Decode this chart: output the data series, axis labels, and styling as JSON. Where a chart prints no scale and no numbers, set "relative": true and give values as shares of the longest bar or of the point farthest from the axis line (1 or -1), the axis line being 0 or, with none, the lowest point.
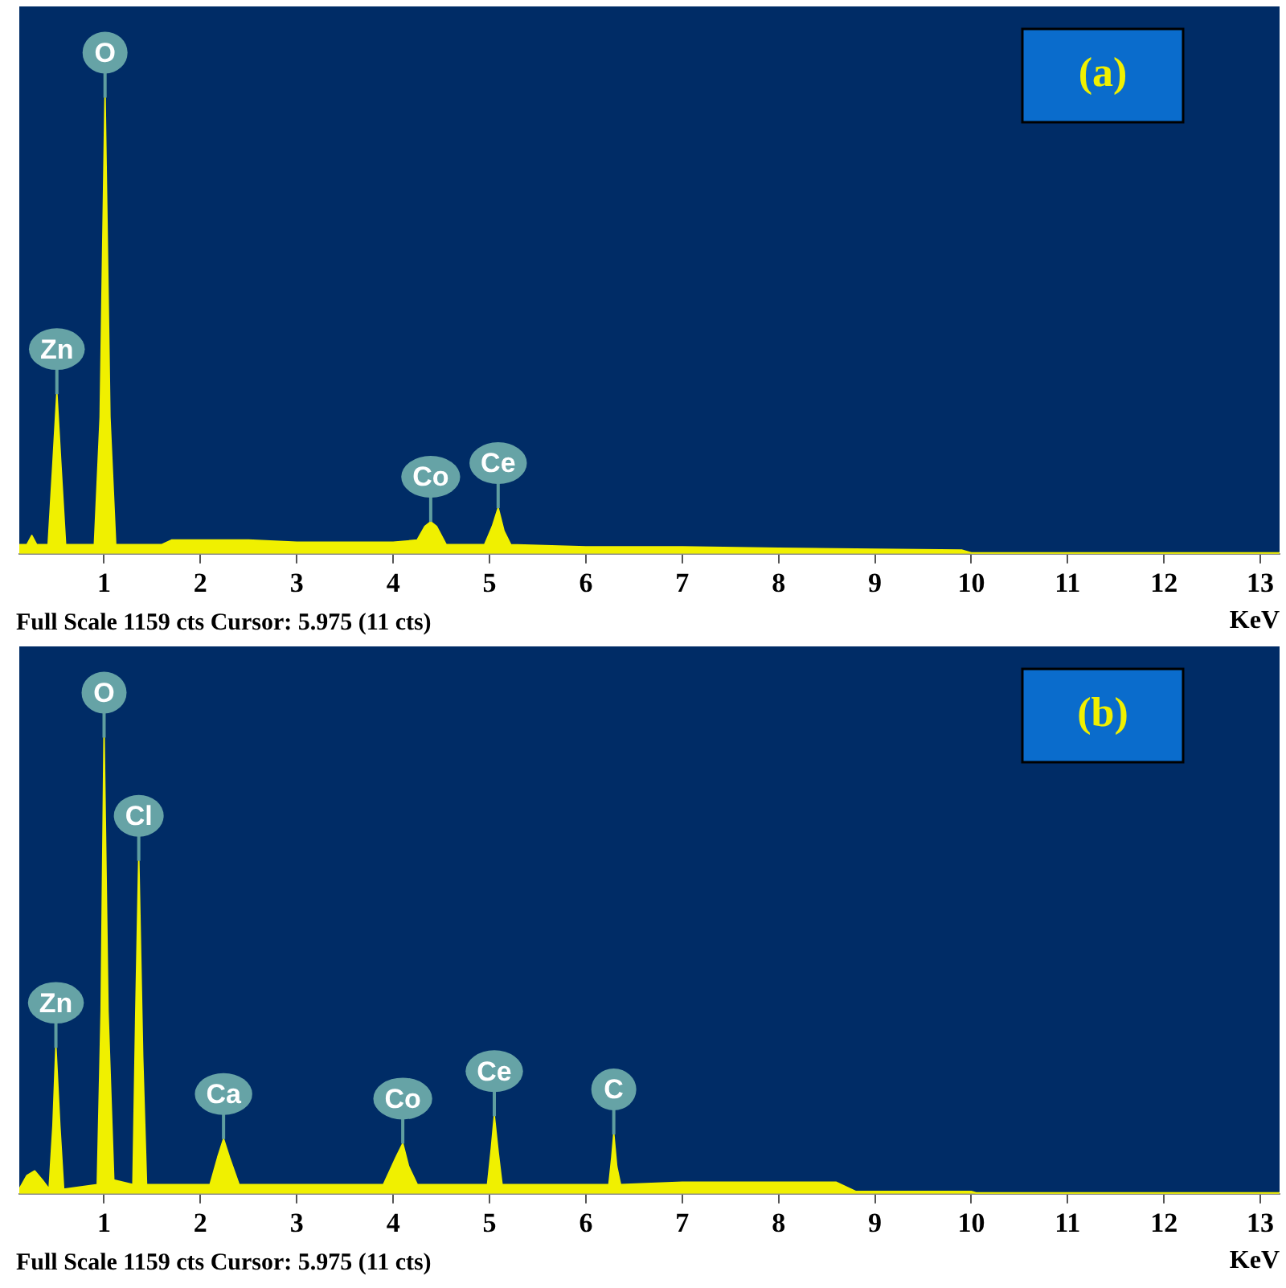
{
  "chart_data": [
    {
      "type": "area",
      "title": "(a)",
      "xlabel": "KeV",
      "relative": true,
      "xlim": [
        0.12,
        13.2
      ],
      "xticks": [
        1,
        2,
        3,
        4,
        5,
        6,
        7,
        8,
        9,
        10,
        11,
        12,
        13
      ],
      "series": [
        {
          "color": "#f0f000",
          "x": [
            0.12,
            0.2,
            0.25,
            0.3,
            0.42,
            0.47,
            0.51,
            0.55,
            0.6,
            0.9,
            0.96,
            1.01,
            1.06,
            1.12,
            1.6,
            1.7,
            2.5,
            3.0,
            4.0,
            4.25,
            4.33,
            4.39,
            4.45,
            4.55,
            4.95,
            5.03,
            5.09,
            5.15,
            5.22,
            6,
            7,
            8,
            9,
            9.9,
            10,
            13.2
          ],
          "values": [
            0.02,
            0.02,
            0.04,
            0.02,
            0.02,
            0.2,
            0.35,
            0.2,
            0.02,
            0.02,
            0.3,
            1,
            0.3,
            0.02,
            0.02,
            0.03,
            0.03,
            0.025,
            0.025,
            0.03,
            0.06,
            0.07,
            0.06,
            0.02,
            0.02,
            0.06,
            0.1,
            0.05,
            0.02,
            0.015,
            0.015,
            0.012,
            0.01,
            0.008,
            0.002,
            0.002
          ]
        }
      ],
      "annotations": [
        {
          "text": "Zn",
          "x": 0.51,
          "y": 0.35
        },
        {
          "text": "O",
          "x": 1.01,
          "y": 1
        },
        {
          "text": "Co",
          "x": 4.39,
          "y": 0.07
        },
        {
          "text": "Ce",
          "x": 5.09,
          "y": 0.1
        },
        "Full Scale 1159 cts Cursor: 5.975 (11 cts)"
      ]
    },
    {
      "type": "area",
      "title": "(b)",
      "xlabel": "KeV",
      "relative": true,
      "xlim": [
        0.12,
        13.2
      ],
      "xticks": [
        1,
        2,
        3,
        4,
        5,
        6,
        7,
        8,
        9,
        10,
        11,
        12,
        13
      ],
      "series": [
        {
          "color": "#f0f000",
          "x": [
            0.12,
            0.2,
            0.28,
            0.36,
            0.43,
            0.47,
            0.5,
            0.54,
            0.58,
            0.93,
            0.97,
            1.0,
            1.04,
            1.1,
            1.3,
            1.33,
            1.36,
            1.4,
            1.44,
            2.1,
            2.18,
            2.24,
            2.3,
            2.4,
            3.9,
            4.03,
            4.1,
            4.16,
            4.25,
            4.98,
            5.02,
            5.05,
            5.09,
            5.13,
            6.24,
            6.27,
            6.29,
            6.32,
            6.36,
            7,
            8,
            8.6,
            8.8,
            10,
            10.05,
            13.2
          ],
          "values": [
            0.01,
            0.04,
            0.05,
            0.03,
            0.01,
            0.15,
            0.32,
            0.15,
            0.01,
            0.02,
            0.4,
            1,
            0.4,
            0.03,
            0.02,
            0.4,
            0.73,
            0.3,
            0.02,
            0.02,
            0.08,
            0.12,
            0.08,
            0.02,
            0.02,
            0.08,
            0.11,
            0.06,
            0.02,
            0.02,
            0.1,
            0.17,
            0.09,
            0.02,
            0.02,
            0.08,
            0.13,
            0.06,
            0.02,
            0.025,
            0.025,
            0.025,
            0.005,
            0.005,
            0.002,
            0.002
          ]
        }
      ],
      "annotations": [
        {
          "text": "Zn",
          "x": 0.5,
          "y": 0.32
        },
        {
          "text": "O",
          "x": 1.0,
          "y": 1
        },
        {
          "text": "Cl",
          "x": 1.36,
          "y": 0.73
        },
        {
          "text": "Ca",
          "x": 2.24,
          "y": 0.12
        },
        {
          "text": "Co",
          "x": 4.1,
          "y": 0.11
        },
        {
          "text": "Ce",
          "x": 5.05,
          "y": 0.17
        },
        {
          "text": "C",
          "x": 6.29,
          "y": 0.13
        },
        "Full Scale 1159 cts Cursor: 5.975 (11 cts)"
      ]
    }
  ]
}
